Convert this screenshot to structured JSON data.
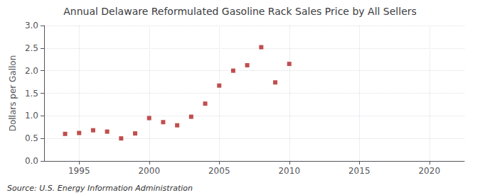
{
  "chart_data": {
    "type": "scatter",
    "title": "Annual Delaware Reformulated Gasoline Rack Sales Price by All Sellers",
    "ylabel": "Dollars per Gallon",
    "annotation": "Source: U.S. Energy Information Administration",
    "x": [
      1994,
      1995,
      1996,
      1997,
      1998,
      1999,
      2000,
      2001,
      2002,
      2003,
      2004,
      2005,
      2006,
      2007,
      2008,
      2009,
      2010
    ],
    "values": [
      0.6,
      0.62,
      0.68,
      0.65,
      0.5,
      0.61,
      0.95,
      0.86,
      0.79,
      0.98,
      1.27,
      1.67,
      2.0,
      2.12,
      2.52,
      1.74,
      2.15
    ],
    "color": "#b22222",
    "marker": "square",
    "xlim": [
      1992.5,
      2022.5
    ],
    "xticks": [
      1995,
      2000,
      2005,
      2010,
      2015,
      2020
    ],
    "ylim": [
      0.0,
      3.0
    ],
    "yticks": [
      {
        "value": 0,
        "label": "0.0"
      },
      0.5,
      {
        "value": 1,
        "label": "1.0"
      },
      1.5,
      {
        "value": 2,
        "label": "2.0"
      },
      2.5,
      {
        "value": 3,
        "label": "3.0"
      }
    ],
    "grid": true
  }
}
